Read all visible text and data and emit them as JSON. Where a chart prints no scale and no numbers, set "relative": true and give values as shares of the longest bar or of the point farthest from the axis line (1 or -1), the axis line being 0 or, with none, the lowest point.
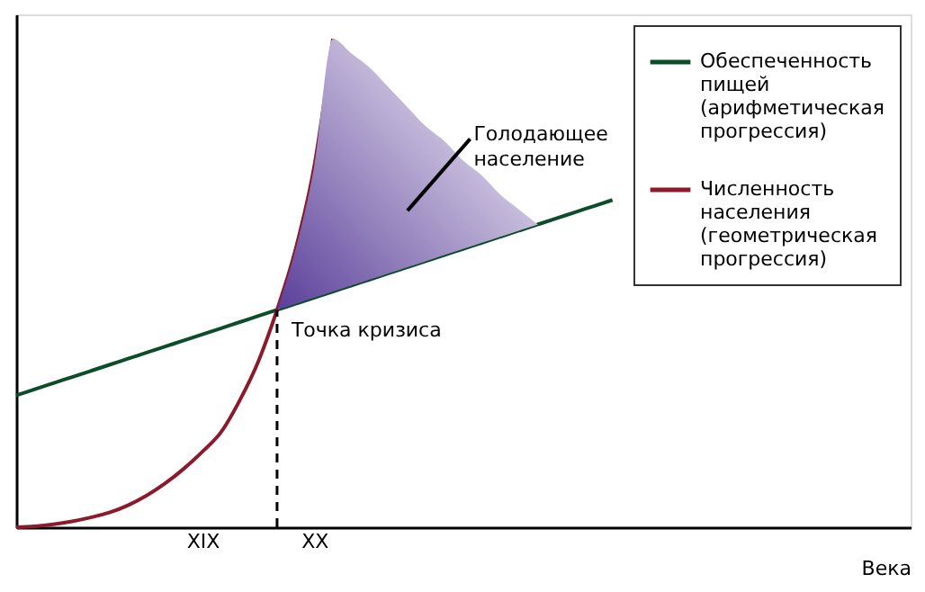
{
  "chart_data": {
    "type": "line",
    "relative": true,
    "xlabel": "Века",
    "categories": [
      null,
      null,
      null,
      null,
      null,
      null,
      null,
      null,
      null,
      null,
      "XIX",
      null,
      null,
      null,
      null,
      null,
      "XX",
      null,
      null,
      null,
      null,
      null,
      null,
      null,
      null,
      null,
      null,
      null,
      null,
      null,
      null,
      null,
      null,
      null,
      null,
      null,
      null,
      null,
      null,
      null,
      null,
      null,
      null,
      null,
      null,
      null,
      null,
      null,
      null
    ],
    "tick_labels": "x",
    "grid": false,
    "legend": "top right",
    "marker": "none",
    "line_style": "solid",
    "series": [
      {
        "name": "Обеспеченность пищей (арифметическая прогрессия)",
        "color": "#0b4d2a",
        "values": [
          0.27,
          0.2825,
          0.295,
          0.3075,
          0.32,
          0.3325,
          0.345,
          0.3575,
          0.37,
          0.3825,
          0.395,
          0.4075,
          0.42,
          0.4325,
          0.445,
          0.4575,
          0.47,
          0.4825,
          0.495,
          0.5075,
          0.52,
          0.5325,
          0.545,
          0.5575,
          0.57,
          0.5825,
          0.595,
          0.6075,
          0.62,
          0.6325,
          0.645,
          0.6575,
          0.67,
          null,
          null,
          null,
          null,
          null,
          null,
          null,
          null,
          null,
          null,
          null,
          null,
          null,
          null,
          null,
          null
        ]
      },
      {
        "name": "Численность населения (геометрическая прогрессия)",
        "color": "#8b1a2a",
        "values": [
          0,
          0.002,
          0.006,
          0.012,
          0.02,
          0.03,
          0.045,
          0.065,
          0.09,
          0.12,
          0.155,
          0.195,
          0.26,
          0.34,
          0.445,
          0.57,
          0.74,
          1,
          null,
          null,
          null,
          null,
          null,
          null,
          null,
          null,
          null,
          null,
          null,
          null,
          null,
          null,
          null,
          null,
          null,
          null,
          null,
          null,
          null,
          null,
          null,
          null,
          null,
          null,
          null,
          null,
          null,
          null,
          null
        ]
      },
      {
        "type": "area",
        "color": "#5b3f9a",
        "values": [
          null,
          null,
          null,
          null,
          null,
          null,
          null,
          null,
          null,
          null,
          null,
          null,
          null,
          null,
          0.445,
          0.57,
          0.74,
          1,
          0.97,
          0.94,
          0.9,
          0.86,
          0.82,
          0.79,
          0.75,
          0.72,
          0.68,
          0.65,
          0.62,
          null,
          null,
          null,
          null,
          null,
          null,
          null,
          null,
          null,
          null,
          null,
          null,
          null,
          null,
          null,
          null,
          null,
          null,
          null,
          null
        ]
      }
    ],
    "annotations": [
      "Точка кризиса",
      "Голодающее население"
    ]
  }
}
